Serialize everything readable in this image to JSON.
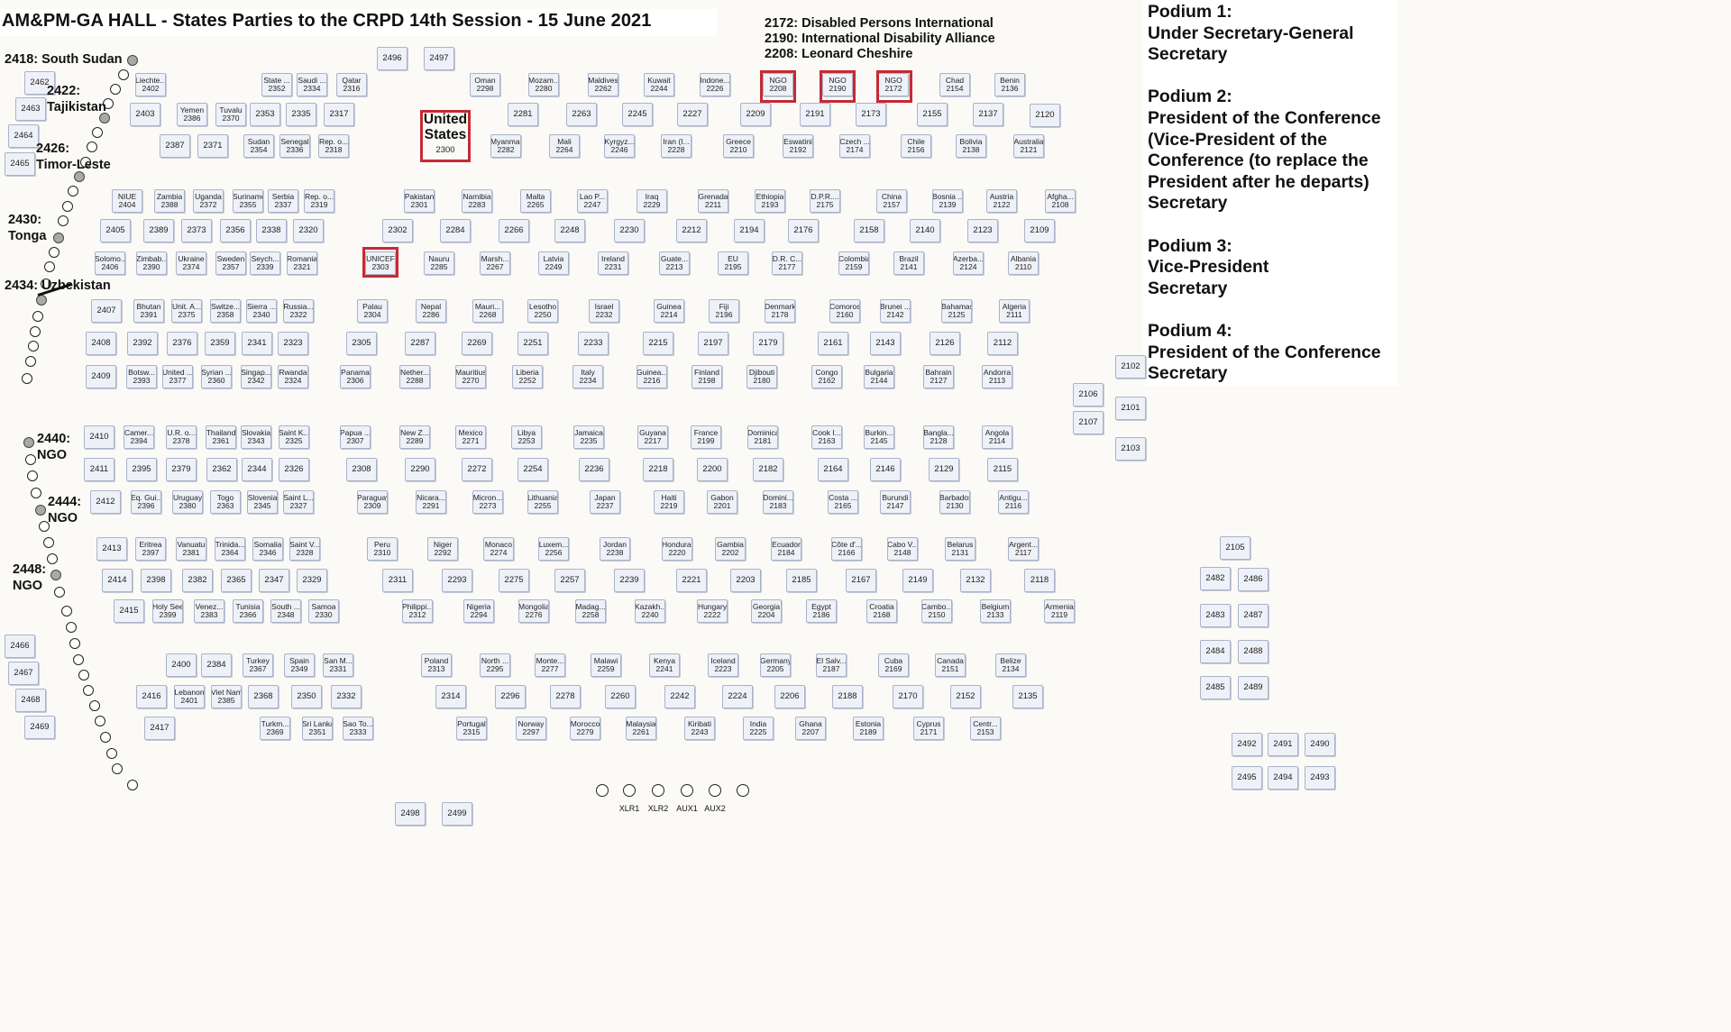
{
  "title": "AM&PM-GA HALL - States Parties to the CRPD 14th Session - 15 June 2021",
  "ngo_legend": [
    "2172: Disabled Persons International",
    "2190: International Disability Alliance",
    "2208: Leonard Cheshire"
  ],
  "podiums": [
    {
      "heading": "Podium 1:",
      "lines": [
        "Under Secretary-General",
        "Secretary"
      ]
    },
    {
      "heading": "Podium 2:",
      "lines": [
        "President of the Conference",
        "(Vice-President of the",
        "Conference (to replace the",
        "President after he departs)",
        "Secretary"
      ]
    },
    {
      "heading": "Podium 3:",
      "lines": [
        "Vice-President",
        "Secretary"
      ]
    },
    {
      "heading": "Podium 4:",
      "lines": [
        "President of the Conference",
        "Secretary"
      ]
    }
  ],
  "highlighted_seat": {
    "line1": "United",
    "line2": "States",
    "number": "2300"
  },
  "side_annotations": [
    {
      "num": "2418:",
      "label": "South Sudan"
    },
    {
      "num": "2422:",
      "label": "Tajikistan"
    },
    {
      "num": "2426:",
      "label": "Timor-Leste"
    },
    {
      "num": "2430:",
      "label": "Tonga"
    },
    {
      "num": "2434:",
      "label": "Uzbekistan"
    },
    {
      "num": "2440:",
      "label": "NGO"
    },
    {
      "num": "2444:",
      "label": "NGO"
    },
    {
      "num": "2448:",
      "label": "NGO"
    }
  ],
  "microphones": [
    "XLR1",
    "XLR2",
    "AUX1",
    "AUX2",
    ""
  ],
  "seats": [
    [
      "2496",
      ""
    ],
    [
      "2497",
      ""
    ],
    [
      "2462",
      ""
    ],
    [
      "2463",
      ""
    ],
    [
      "2464",
      ""
    ],
    [
      "2465",
      ""
    ],
    [
      "2466",
      ""
    ],
    [
      "2467",
      ""
    ],
    [
      "2468",
      ""
    ],
    [
      "2469",
      ""
    ],
    [
      "2402",
      "Liechte..."
    ],
    [
      "2352",
      "State ..."
    ],
    [
      "2334",
      "Saudi ..."
    ],
    [
      "2316",
      "Qatar"
    ],
    [
      "2298",
      "Oman"
    ],
    [
      "2280",
      "Mozam..."
    ],
    [
      "2262",
      "Maldives"
    ],
    [
      "2244",
      "Kuwait"
    ],
    [
      "2226",
      "Indone..."
    ],
    [
      "2208",
      "NGO"
    ],
    [
      "2190",
      "NGO"
    ],
    [
      "2172",
      "NGO"
    ],
    [
      "2154",
      "Chad"
    ],
    [
      "2136",
      "Benin"
    ],
    [
      "2403",
      ""
    ],
    [
      "2386",
      "Yemen"
    ],
    [
      "2370",
      "Tuvalu"
    ],
    [
      "2353",
      ""
    ],
    [
      "2335",
      ""
    ],
    [
      "2317",
      ""
    ],
    [
      "2281",
      ""
    ],
    [
      "2263",
      ""
    ],
    [
      "2245",
      ""
    ],
    [
      "2227",
      ""
    ],
    [
      "2209",
      ""
    ],
    [
      "2191",
      ""
    ],
    [
      "2173",
      ""
    ],
    [
      "2155",
      ""
    ],
    [
      "2137",
      ""
    ],
    [
      "2120",
      ""
    ],
    [
      "2387",
      ""
    ],
    [
      "2371",
      ""
    ],
    [
      "2354",
      "Sudan"
    ],
    [
      "2336",
      "Senegal"
    ],
    [
      "2318",
      "Rep. o..."
    ],
    [
      "2282",
      "Myanmar"
    ],
    [
      "2264",
      "Mali"
    ],
    [
      "2246",
      "Kyrgyz..."
    ],
    [
      "2228",
      "Iran (I..."
    ],
    [
      "2210",
      "Greece"
    ],
    [
      "2192",
      "Eswatini"
    ],
    [
      "2174",
      "Czech ..."
    ],
    [
      "2156",
      "Chile"
    ],
    [
      "2138",
      "Bolivia"
    ],
    [
      "2121",
      "Australia"
    ],
    [
      "2404",
      "NIUE"
    ],
    [
      "2388",
      "Zambia"
    ],
    [
      "2372",
      "Uganda"
    ],
    [
      "2355",
      "Suriname"
    ],
    [
      "2337",
      "Serbia"
    ],
    [
      "2319",
      "Rep. o..."
    ],
    [
      "2301",
      "Pakistan"
    ],
    [
      "2283",
      "Namibia"
    ],
    [
      "2265",
      "Malta"
    ],
    [
      "2247",
      "Lao P..."
    ],
    [
      "2229",
      "Iraq"
    ],
    [
      "2211",
      "Grenada"
    ],
    [
      "2193",
      "Ethiopia"
    ],
    [
      "2175",
      "D.P.R...."
    ],
    [
      "2157",
      "China"
    ],
    [
      "2139",
      "Bosnia ..."
    ],
    [
      "2122",
      "Austria"
    ],
    [
      "2108",
      "Afgha..."
    ],
    [
      "2405",
      ""
    ],
    [
      "2389",
      ""
    ],
    [
      "2373",
      ""
    ],
    [
      "2356",
      ""
    ],
    [
      "2338",
      ""
    ],
    [
      "2320",
      ""
    ],
    [
      "2302",
      ""
    ],
    [
      "2284",
      ""
    ],
    [
      "2266",
      ""
    ],
    [
      "2248",
      ""
    ],
    [
      "2230",
      ""
    ],
    [
      "2212",
      ""
    ],
    [
      "2194",
      ""
    ],
    [
      "2176",
      ""
    ],
    [
      "2158",
      ""
    ],
    [
      "2140",
      ""
    ],
    [
      "2123",
      ""
    ],
    [
      "2109",
      ""
    ],
    [
      "2406",
      "Solomo..."
    ],
    [
      "2390",
      "Zimbab..."
    ],
    [
      "2374",
      "Ukraine"
    ],
    [
      "2357",
      "Sweden"
    ],
    [
      "2339",
      "Seych..."
    ],
    [
      "2321",
      "Romania"
    ],
    [
      "2303",
      "UNICEF"
    ],
    [
      "2285",
      "Nauru"
    ],
    [
      "2267",
      "Marsh..."
    ],
    [
      "2249",
      "Latvia"
    ],
    [
      "2231",
      "Ireland"
    ],
    [
      "2213",
      "Guate..."
    ],
    [
      "2195",
      "EU"
    ],
    [
      "2177",
      "D.R. C..."
    ],
    [
      "2159",
      "Colombia"
    ],
    [
      "2141",
      "Brazil"
    ],
    [
      "2124",
      "Azerba..."
    ],
    [
      "2110",
      "Albania"
    ],
    [
      "2407",
      ""
    ],
    [
      "2391",
      "Bhutan"
    ],
    [
      "2375",
      "Unit. A..."
    ],
    [
      "2358",
      "Switze..."
    ],
    [
      "2340",
      "Sierra ..."
    ],
    [
      "2322",
      "Russia..."
    ],
    [
      "2304",
      "Palau"
    ],
    [
      "2286",
      "Nepal"
    ],
    [
      "2268",
      "Mauri..."
    ],
    [
      "2250",
      "Lesotho"
    ],
    [
      "2232",
      "Israel"
    ],
    [
      "2214",
      "Guinea"
    ],
    [
      "2196",
      "Fiji"
    ],
    [
      "2178",
      "Denmark"
    ],
    [
      "2160",
      "Comoros"
    ],
    [
      "2142",
      "Brunei ..."
    ],
    [
      "2125",
      "Bahamas"
    ],
    [
      "2111",
      "Algeria"
    ],
    [
      "2408",
      ""
    ],
    [
      "2392",
      ""
    ],
    [
      "2376",
      ""
    ],
    [
      "2359",
      ""
    ],
    [
      "2341",
      ""
    ],
    [
      "2323",
      ""
    ],
    [
      "2305",
      ""
    ],
    [
      "2287",
      ""
    ],
    [
      "2269",
      ""
    ],
    [
      "2251",
      ""
    ],
    [
      "2233",
      ""
    ],
    [
      "2215",
      ""
    ],
    [
      "2197",
      ""
    ],
    [
      "2179",
      ""
    ],
    [
      "2161",
      ""
    ],
    [
      "2143",
      ""
    ],
    [
      "2126",
      ""
    ],
    [
      "2112",
      ""
    ],
    [
      "2409",
      ""
    ],
    [
      "2393",
      "Botsw..."
    ],
    [
      "2377",
      "United ..."
    ],
    [
      "2360",
      "Syrian ..."
    ],
    [
      "2342",
      "Singap..."
    ],
    [
      "2324",
      "Rwanda"
    ],
    [
      "2306",
      "Panama"
    ],
    [
      "2288",
      "Nether..."
    ],
    [
      "2270",
      "Mauritius"
    ],
    [
      "2252",
      "Liberia"
    ],
    [
      "2234",
      "Italy"
    ],
    [
      "2216",
      "Guinea..."
    ],
    [
      "2198",
      "Finland"
    ],
    [
      "2180",
      "Djibouti"
    ],
    [
      "2162",
      "Congo"
    ],
    [
      "2144",
      "Bulgaria"
    ],
    [
      "2127",
      "Bahrain"
    ],
    [
      "2113",
      "Andorra"
    ],
    [
      "2102",
      ""
    ],
    [
      "2106",
      ""
    ],
    [
      "2101",
      ""
    ],
    [
      "2107",
      ""
    ],
    [
      "2103",
      ""
    ],
    [
      "2410",
      ""
    ],
    [
      "2394",
      "Camer..."
    ],
    [
      "2378",
      "U.R. o..."
    ],
    [
      "2361",
      "Thailand"
    ],
    [
      "2343",
      "Slovakia"
    ],
    [
      "2325",
      "Saint K..."
    ],
    [
      "2307",
      "Papua ..."
    ],
    [
      "2289",
      "New Z..."
    ],
    [
      "2271",
      "Mexico"
    ],
    [
      "2253",
      "Libya"
    ],
    [
      "2235",
      "Jamaica"
    ],
    [
      "2217",
      "Guyana"
    ],
    [
      "2199",
      "France"
    ],
    [
      "2181",
      "Dominica"
    ],
    [
      "2163",
      "Cook I..."
    ],
    [
      "2145",
      "Burkin..."
    ],
    [
      "2128",
      "Bangla..."
    ],
    [
      "2114",
      "Angola"
    ],
    [
      "2411",
      ""
    ],
    [
      "2395",
      ""
    ],
    [
      "2379",
      ""
    ],
    [
      "2362",
      ""
    ],
    [
      "2344",
      ""
    ],
    [
      "2326",
      ""
    ],
    [
      "2308",
      ""
    ],
    [
      "2290",
      ""
    ],
    [
      "2272",
      ""
    ],
    [
      "2254",
      ""
    ],
    [
      "2236",
      ""
    ],
    [
      "2218",
      ""
    ],
    [
      "2200",
      ""
    ],
    [
      "2182",
      ""
    ],
    [
      "2164",
      ""
    ],
    [
      "2146",
      ""
    ],
    [
      "2129",
      ""
    ],
    [
      "2115",
      ""
    ],
    [
      "2412",
      ""
    ],
    [
      "2396",
      "Eq. Gui..."
    ],
    [
      "2380",
      "Uruguay"
    ],
    [
      "2363",
      "Togo"
    ],
    [
      "2345",
      "Slovenia"
    ],
    [
      "2327",
      "Saint L..."
    ],
    [
      "2309",
      "Paraguay"
    ],
    [
      "2291",
      "Nicara..."
    ],
    [
      "2273",
      "Micron..."
    ],
    [
      "2255",
      "Lithuania"
    ],
    [
      "2237",
      "Japan"
    ],
    [
      "2219",
      "Haiti"
    ],
    [
      "2201",
      "Gabon"
    ],
    [
      "2183",
      "Domini..."
    ],
    [
      "2165",
      "Costa ..."
    ],
    [
      "2147",
      "Burundi"
    ],
    [
      "2130",
      "Barbados"
    ],
    [
      "2116",
      "Antigu..."
    ],
    [
      "2413",
      ""
    ],
    [
      "2397",
      "Eritrea"
    ],
    [
      "2381",
      "Vanuatu"
    ],
    [
      "2364",
      "Trinida..."
    ],
    [
      "2346",
      "Somalia"
    ],
    [
      "2328",
      "Saint V..."
    ],
    [
      "2310",
      "Peru"
    ],
    [
      "2292",
      "Niger"
    ],
    [
      "2274",
      "Monaco"
    ],
    [
      "2256",
      "Luxem..."
    ],
    [
      "2238",
      "Jordan"
    ],
    [
      "2220",
      "Honduras"
    ],
    [
      "2202",
      "Gambia"
    ],
    [
      "2184",
      "Ecuador"
    ],
    [
      "2166",
      "Côte d'..."
    ],
    [
      "2148",
      "Cabo V..."
    ],
    [
      "2131",
      "Belarus"
    ],
    [
      "2117",
      "Argent..."
    ],
    [
      "2414",
      ""
    ],
    [
      "2398",
      ""
    ],
    [
      "2382",
      ""
    ],
    [
      "2365",
      ""
    ],
    [
      "2347",
      ""
    ],
    [
      "2329",
      ""
    ],
    [
      "2311",
      ""
    ],
    [
      "2293",
      ""
    ],
    [
      "2275",
      ""
    ],
    [
      "2257",
      ""
    ],
    [
      "2239",
      ""
    ],
    [
      "2221",
      ""
    ],
    [
      "2203",
      ""
    ],
    [
      "2185",
      ""
    ],
    [
      "2167",
      ""
    ],
    [
      "2149",
      ""
    ],
    [
      "2132",
      ""
    ],
    [
      "2118",
      ""
    ],
    [
      "2415",
      ""
    ],
    [
      "2399",
      "Holy See"
    ],
    [
      "2383",
      "Venez..."
    ],
    [
      "2366",
      "Tunisia"
    ],
    [
      "2348",
      "South ..."
    ],
    [
      "2330",
      "Samoa"
    ],
    [
      "2312",
      "Philippi..."
    ],
    [
      "2294",
      "Nigeria"
    ],
    [
      "2276",
      "Mongolia"
    ],
    [
      "2258",
      "Madag..."
    ],
    [
      "2240",
      "Kazakh..."
    ],
    [
      "2222",
      "Hungary"
    ],
    [
      "2204",
      "Georgia"
    ],
    [
      "2186",
      "Egypt"
    ],
    [
      "2168",
      "Croatia"
    ],
    [
      "2150",
      "Cambo..."
    ],
    [
      "2133",
      "Belgium"
    ],
    [
      "2119",
      "Armenia"
    ],
    [
      "2400",
      ""
    ],
    [
      "2384",
      ""
    ],
    [
      "2367",
      "Turkey"
    ],
    [
      "2349",
      "Spain"
    ],
    [
      "2331",
      "San M..."
    ],
    [
      "2313",
      "Poland"
    ],
    [
      "2295",
      "North ..."
    ],
    [
      "2277",
      "Monte..."
    ],
    [
      "2259",
      "Malawi"
    ],
    [
      "2241",
      "Kenya"
    ],
    [
      "2223",
      "Iceland"
    ],
    [
      "2205",
      "Germany"
    ],
    [
      "2187",
      "El Salv..."
    ],
    [
      "2169",
      "Cuba"
    ],
    [
      "2151",
      "Canada"
    ],
    [
      "2134",
      "Belize"
    ],
    [
      "2416",
      ""
    ],
    [
      "2401",
      "Lebanon"
    ],
    [
      "2385",
      "Viet Nam"
    ],
    [
      "2368",
      ""
    ],
    [
      "2350",
      ""
    ],
    [
      "2332",
      ""
    ],
    [
      "2314",
      ""
    ],
    [
      "2296",
      ""
    ],
    [
      "2278",
      ""
    ],
    [
      "2260",
      ""
    ],
    [
      "2242",
      ""
    ],
    [
      "2224",
      ""
    ],
    [
      "2206",
      ""
    ],
    [
      "2188",
      ""
    ],
    [
      "2170",
      ""
    ],
    [
      "2152",
      ""
    ],
    [
      "2135",
      ""
    ],
    [
      "2417",
      ""
    ],
    [
      "2369",
      "Turkm..."
    ],
    [
      "2351",
      "Sri Lanka"
    ],
    [
      "2333",
      "Sao To..."
    ],
    [
      "2315",
      "Portugal"
    ],
    [
      "2297",
      "Norway"
    ],
    [
      "2279",
      "Morocco"
    ],
    [
      "2261",
      "Malaysia"
    ],
    [
      "2243",
      "Kiribati"
    ],
    [
      "2225",
      "India"
    ],
    [
      "2207",
      "Ghana"
    ],
    [
      "2189",
      "Estonia"
    ],
    [
      "2171",
      "Cyprus"
    ],
    [
      "2153",
      "Centr..."
    ],
    [
      "2105",
      ""
    ],
    [
      "2482",
      ""
    ],
    [
      "2486",
      ""
    ],
    [
      "2483",
      ""
    ],
    [
      "2487",
      ""
    ],
    [
      "2484",
      ""
    ],
    [
      "2488",
      ""
    ],
    [
      "2485",
      ""
    ],
    [
      "2489",
      ""
    ],
    [
      "2492",
      ""
    ],
    [
      "2491",
      ""
    ],
    [
      "2490",
      ""
    ],
    [
      "2495",
      ""
    ],
    [
      "2494",
      ""
    ],
    [
      "2493",
      ""
    ],
    [
      "2498",
      ""
    ],
    [
      "2499",
      ""
    ]
  ]
}
